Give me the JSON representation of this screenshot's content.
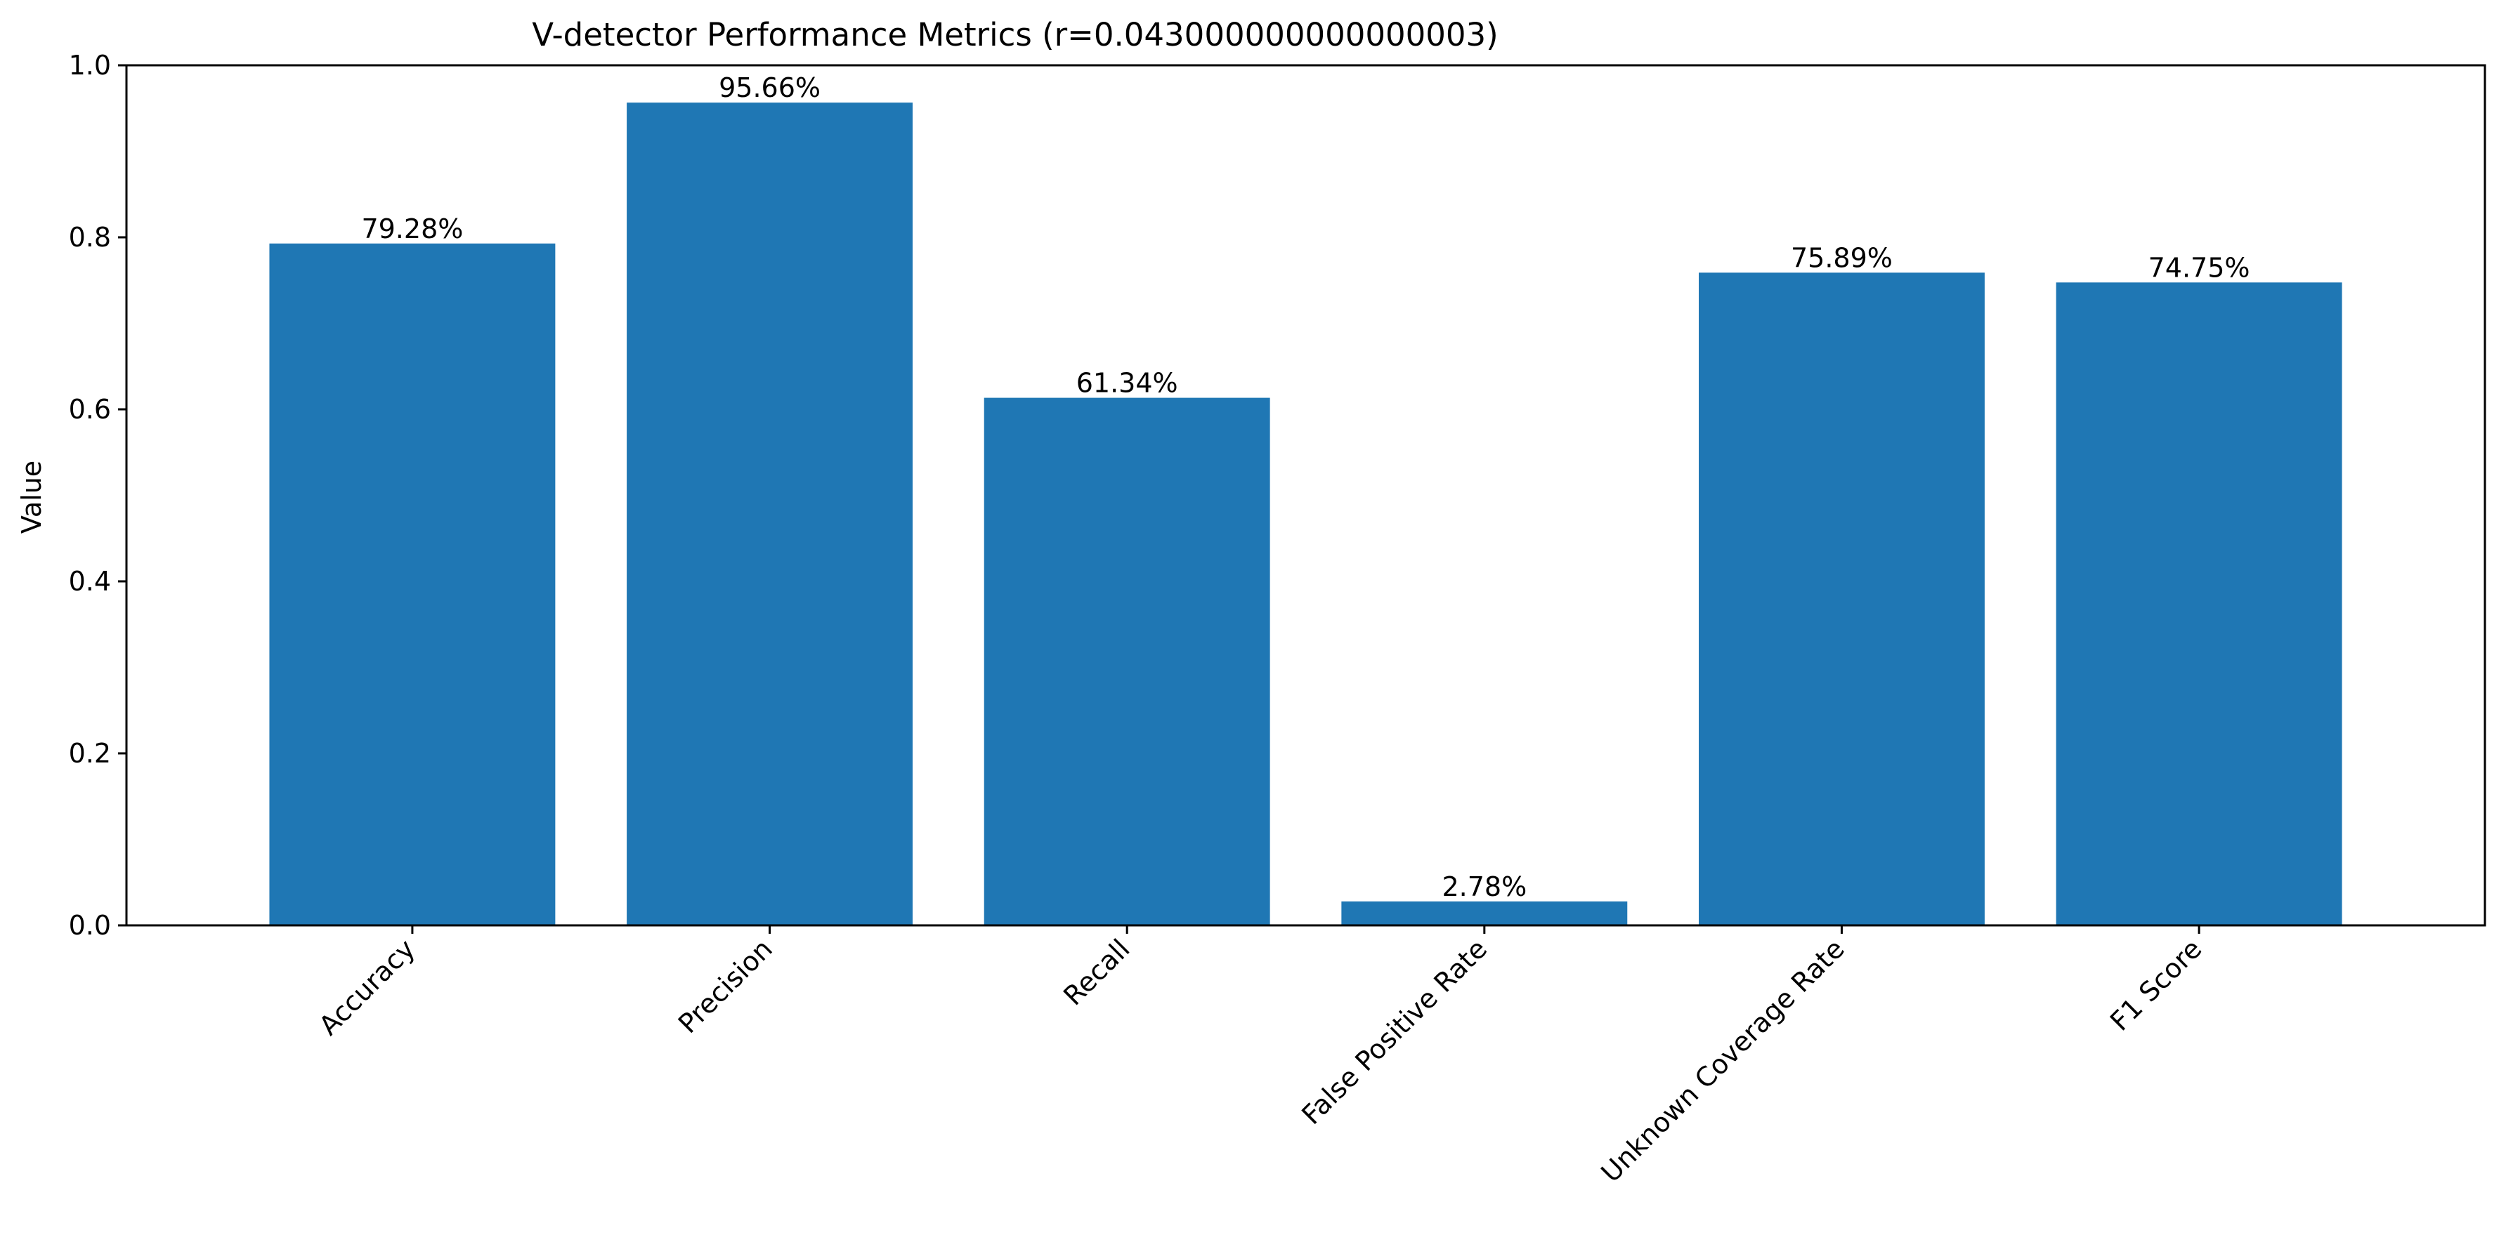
{
  "chart_data": {
    "type": "bar",
    "title": "V-detector Performance Metrics (r=0.043000000000000003)",
    "xlabel": "",
    "ylabel": "Value",
    "categories": [
      "Accuracy",
      "Precision",
      "Recall",
      "False Positive Rate",
      "Unknown Coverage Rate",
      "F1 Score"
    ],
    "values": [
      0.7928,
      0.9566,
      0.6134,
      0.0278,
      0.7589,
      0.7475
    ],
    "data_labels": [
      "79.28%",
      "95.66%",
      "61.34%",
      "2.78%",
      "75.89%",
      "74.75%"
    ],
    "ylim": [
      0,
      1.0
    ],
    "yticks": [
      0.0,
      0.2,
      0.4,
      0.6,
      0.8,
      1.0
    ],
    "ytick_labels": [
      "0.0",
      "0.2",
      "0.4",
      "0.6",
      "0.8",
      "1.0"
    ],
    "grid": false,
    "legend": "none",
    "bar_color": "#1f77b4"
  }
}
